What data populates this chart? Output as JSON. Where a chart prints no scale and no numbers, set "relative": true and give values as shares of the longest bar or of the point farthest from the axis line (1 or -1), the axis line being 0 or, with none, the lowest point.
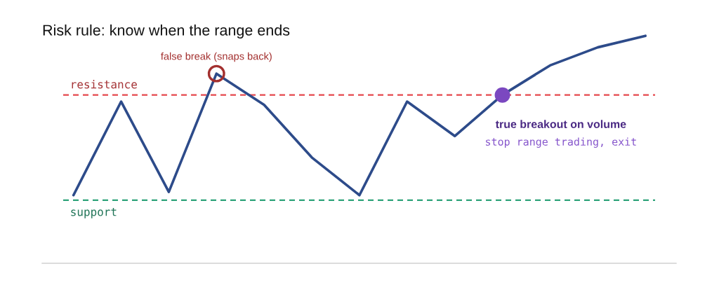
{
  "chart_data": {
    "type": "line",
    "title": "Risk rule: know when the range ends",
    "relative": true,
    "categories": [
      null,
      null,
      null,
      null,
      null,
      null,
      null,
      null,
      null,
      null,
      null,
      null,
      null
    ],
    "series": [
      {
        "color": "#2d4b8a",
        "line_style": "solid",
        "values": [
          0.03,
          0.6,
          0.05,
          0.77,
          0.58,
          0.26,
          0.03,
          0.6,
          0.39,
          0.64,
          0.82,
          0.93,
          1
        ]
      }
    ],
    "ref_lines": [
      {
        "axis": "y",
        "value": 0.64,
        "label": "resistance",
        "color": "#e5484d",
        "line_style": "dashed"
      },
      {
        "axis": "y",
        "value": 0,
        "label": "support",
        "color": "#2ea37a",
        "line_style": "dashed"
      }
    ],
    "annotations": [
      "false break (snaps back)",
      "true breakout on volume",
      "stop range trading, exit"
    ]
  }
}
